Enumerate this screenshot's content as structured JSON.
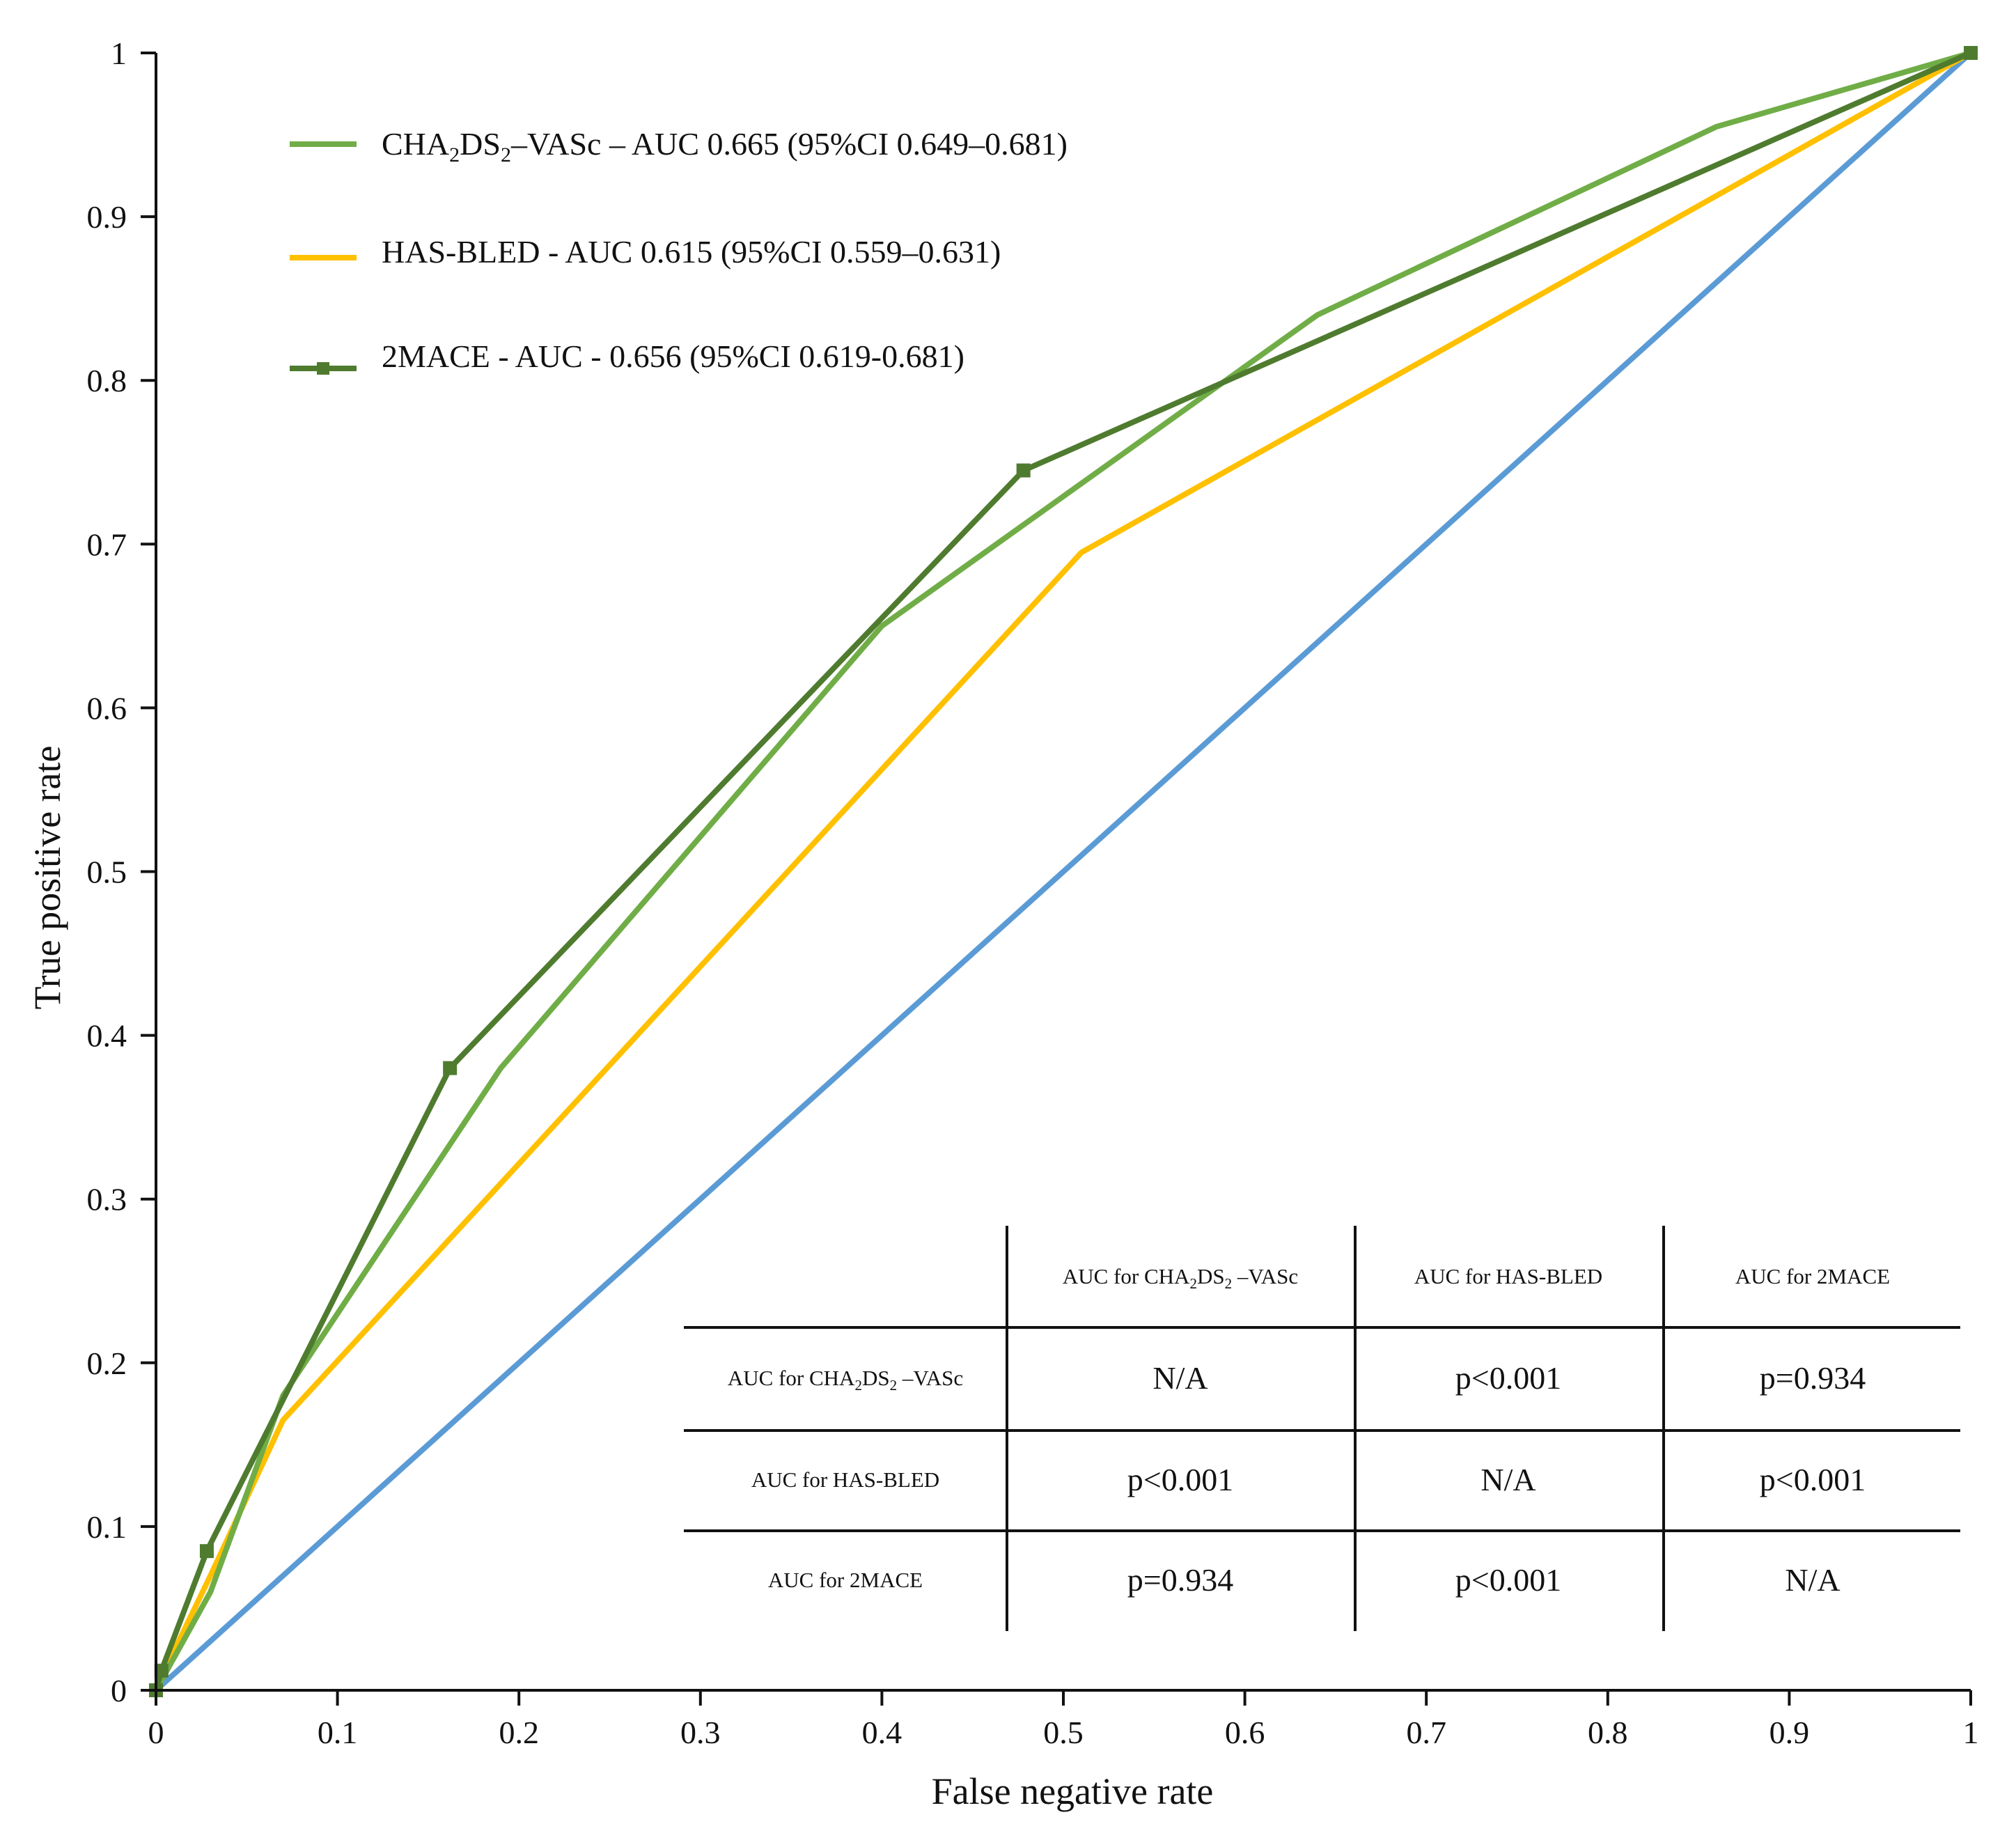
{
  "chart_data": {
    "type": "line",
    "title": "",
    "xlabel": "False negative rate",
    "ylabel": "True positive rate",
    "xlim": [
      0,
      1
    ],
    "ylim": [
      0,
      1
    ],
    "x_ticks": [
      "0",
      "0.1",
      "0.2",
      "0.3",
      "0.4",
      "0.5",
      "0.6",
      "0.7",
      "0.8",
      "0.9",
      "1"
    ],
    "y_ticks": [
      "0",
      "0.1",
      "0.2",
      "0.3",
      "0.4",
      "0.5",
      "0.6",
      "0.7",
      "0.8",
      "0.9",
      "1"
    ],
    "grid": false,
    "legend_position": "top-left",
    "series": [
      {
        "name": "CHA2DS2–VASc",
        "legend": {
          "prefix": "CHA",
          "sub1": "2",
          "mid": "DS",
          "sub2": "2",
          "suffix": "–VASc – AUC 0.665 (95%CI 0.649–0.681)"
        },
        "color": "#70AD47",
        "marker": "none",
        "x": [
          0,
          0.005,
          0.03,
          0.07,
          0.19,
          0.4,
          0.64,
          0.86,
          1.0
        ],
        "y": [
          0,
          0.01,
          0.06,
          0.18,
          0.38,
          0.65,
          0.84,
          0.955,
          1.0
        ]
      },
      {
        "name": "HAS-BLED",
        "legend_text": "HAS-BLED - AUC 0.615 (95%CI 0.559–0.631)",
        "color": "#FFC000",
        "marker": "none",
        "x": [
          0,
          0.003,
          0.03,
          0.07,
          0.51,
          1.0
        ],
        "y": [
          0,
          0.008,
          0.07,
          0.165,
          0.695,
          1.0
        ]
      },
      {
        "name": "2MACE",
        "legend_text": "2MACE - AUC - 0.656 (95%CI 0.619-0.681)",
        "color": "#4F7B2F",
        "marker": "square",
        "x": [
          0,
          0.003,
          0.028,
          0.162,
          0.478,
          1.0
        ],
        "y": [
          0,
          0.012,
          0.085,
          0.38,
          0.745,
          1.0
        ]
      },
      {
        "name": "Reference",
        "color": "#5B9BD5",
        "marker": "none",
        "x": [
          0,
          1
        ],
        "y": [
          0,
          1
        ]
      }
    ],
    "table": {
      "col_headers": [
        {
          "prefix": "AUC for CHA",
          "sub1": "2",
          "mid": "DS",
          "sub2": "2",
          "suffix": " –VASc"
        },
        {
          "text": "AUC for HAS-BLED"
        },
        {
          "text": "AUC for 2MACE"
        }
      ],
      "rows": [
        {
          "label": {
            "prefix": "AUC for CHA",
            "sub1": "2",
            "mid": "DS",
            "sub2": "2",
            "suffix": " –VASc"
          },
          "cells": [
            "N/A",
            "p<0.001",
            "p=0.934"
          ]
        },
        {
          "label": {
            "text": "AUC for HAS-BLED"
          },
          "cells": [
            "p<0.001",
            "N/A",
            "p<0.001"
          ]
        },
        {
          "label": {
            "text": "AUC for 2MACE"
          },
          "cells": [
            "p=0.934",
            "p<0.001",
            "N/A"
          ]
        }
      ]
    }
  }
}
